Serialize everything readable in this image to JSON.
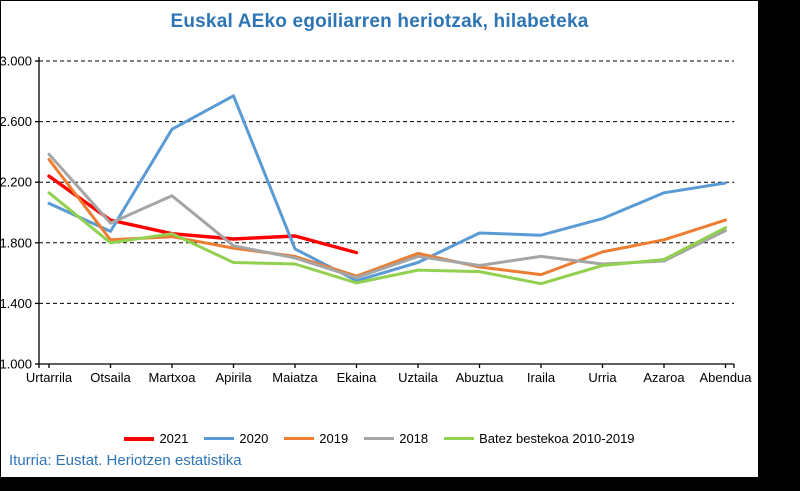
{
  "title": "Euskal AEko egoiliarren heriotzak, hilabeteka",
  "source": "Iturria: Eustat. Heriotzen estatistika",
  "colors": {
    "title_text": "#2E75B6",
    "source_text": "#2E75B6",
    "axis": "#000000",
    "gridline": "#000000",
    "background": "#FFFFFF",
    "outer_background": "#000000"
  },
  "chart_data": {
    "type": "line",
    "title": "Euskal AEko egoiliarren heriotzak, hilabeteka",
    "xlabel": "",
    "ylabel": "",
    "ylim": [
      1000,
      3000
    ],
    "grid": "horizontal-dashed",
    "legend_position": "bottom",
    "categories": [
      "Urtarrila",
      "Otsaila",
      "Martxoa",
      "Apirila",
      "Maiatza",
      "Ekaina",
      "Uztaila",
      "Abuztua",
      "Iraila",
      "Urria",
      "Azaroa",
      "Abendua"
    ],
    "y_ticks": [
      {
        "label": "3.000",
        "value": 3000
      },
      {
        "label": "2.600",
        "value": 2600
      },
      {
        "label": "2.200",
        "value": 2200
      },
      {
        "label": "1.800",
        "value": 1800
      },
      {
        "label": "1.400",
        "value": 1400
      },
      {
        "label": "1.000",
        "value": 1000
      }
    ],
    "series": [
      {
        "name": "2021",
        "color": "#FF0000",
        "values": [
          2240,
          1950,
          1860,
          1825,
          1845,
          1735
        ]
      },
      {
        "name": "2020",
        "color": "#5B9BD5",
        "values": [
          2060,
          1875,
          2550,
          2770,
          1760,
          1550,
          1670,
          1865,
          1850,
          1960,
          2130,
          2195
        ]
      },
      {
        "name": "2019",
        "color": "#ED7D31",
        "values": [
          2350,
          1820,
          1840,
          1765,
          1710,
          1580,
          1730,
          1640,
          1590,
          1740,
          1820,
          1950
        ]
      },
      {
        "name": "2018",
        "color": "#A5A5A5",
        "values": [
          2385,
          1930,
          2110,
          1780,
          1700,
          1570,
          1710,
          1650,
          1710,
          1660,
          1680,
          1880
        ]
      },
      {
        "name": "Batez bestekoa 2010-2019",
        "color": "#92D050",
        "values": [
          2130,
          1800,
          1860,
          1670,
          1660,
          1535,
          1620,
          1610,
          1530,
          1650,
          1690,
          1900
        ]
      }
    ]
  }
}
